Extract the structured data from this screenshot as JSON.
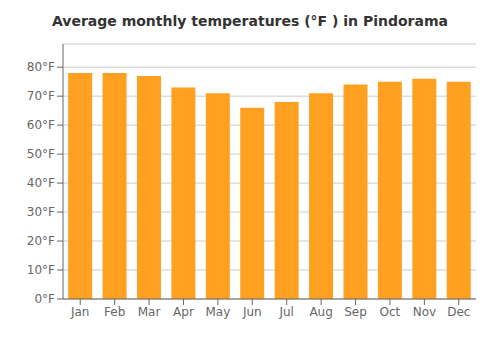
{
  "chart_data": {
    "type": "bar",
    "title": "Average monthly temperatures (°F ) in Pindorama",
    "categories": [
      "Jan",
      "Feb",
      "Mar",
      "Apr",
      "May",
      "Jun",
      "Jul",
      "Aug",
      "Sep",
      "Oct",
      "Nov",
      "Dec"
    ],
    "values": [
      78,
      78,
      77,
      73,
      71,
      66,
      68,
      71,
      74,
      75,
      76,
      75
    ],
    "color": "#FFA020",
    "ylim": [
      0,
      88
    ],
    "yticks": [
      {
        "value": 0,
        "label": "0°F"
      },
      {
        "value": 10,
        "label": "10°F"
      },
      {
        "value": 20,
        "label": "20°F"
      },
      {
        "value": 30,
        "label": "30°F"
      },
      {
        "value": 40,
        "label": "40°F"
      },
      {
        "value": 50,
        "label": "50°F"
      },
      {
        "value": 60,
        "label": "60°F"
      },
      {
        "value": 70,
        "label": "70°F"
      },
      {
        "value": 80,
        "label": "80°F"
      }
    ],
    "grid": true
  }
}
